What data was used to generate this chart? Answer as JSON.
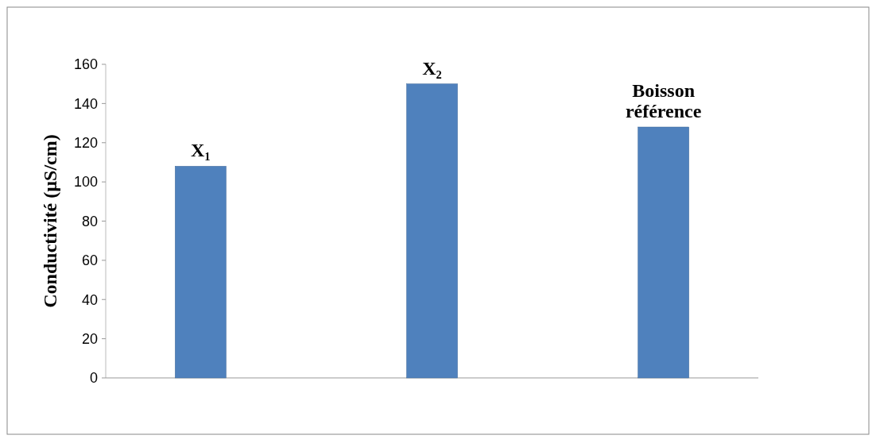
{
  "chart_data": {
    "type": "bar",
    "ylabel": "Conductivité (µS/cm)",
    "categories": [
      "X₁",
      "X₂",
      "Boisson référence"
    ],
    "values": [
      108,
      150,
      128
    ],
    "color": "#4f81bd",
    "ylim": [
      0,
      160
    ],
    "yticks": [
      0,
      20,
      40,
      60,
      80,
      100,
      120,
      140,
      160
    ],
    "grid": false
  }
}
